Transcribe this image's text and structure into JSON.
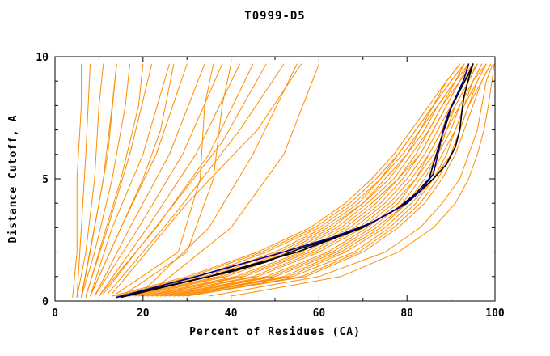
{
  "chart_data": {
    "type": "line",
    "title": "T0999-D5",
    "xlabel": "Percent of Residues (CA)",
    "ylabel": "Distance Cutoff, A",
    "xlim": [
      0,
      100
    ],
    "ylim": [
      0,
      10
    ],
    "x_ticks": [
      0,
      20,
      40,
      60,
      80,
      100
    ],
    "y_ticks": [
      0,
      5,
      10
    ],
    "x_minor_step": 10,
    "y_minor_step": 1,
    "grid": false,
    "legend": "none",
    "colors": {
      "model": "#ff8c00",
      "highlight_black": "#000000",
      "highlight_blue": "#000090"
    },
    "bundle": {
      "color": "#ff8c00",
      "ys": [
        0.2,
        1,
        2,
        3,
        4,
        5,
        6,
        7,
        8,
        9,
        9.7
      ],
      "curves_x": [
        [
          13,
          30,
          46,
          58,
          66,
          72,
          77,
          81,
          85,
          89,
          92
        ],
        [
          14,
          31,
          47,
          59,
          67,
          73,
          78,
          82,
          86,
          89,
          92
        ],
        [
          15,
          33,
          48,
          60,
          68,
          74,
          78,
          82,
          86,
          90,
          93
        ],
        [
          16,
          34,
          50,
          61,
          69,
          74,
          79,
          83,
          86,
          90,
          93
        ],
        [
          16,
          35,
          51,
          62,
          70,
          75,
          80,
          83,
          87,
          91,
          93
        ],
        [
          17,
          37,
          52,
          63,
          70,
          76,
          80,
          84,
          87,
          91,
          94
        ],
        [
          18,
          38,
          53,
          64,
          71,
          77,
          81,
          85,
          88,
          91,
          94
        ],
        [
          19,
          39,
          54,
          65,
          72,
          78,
          82,
          85,
          88,
          92,
          94
        ],
        [
          20,
          41,
          56,
          66,
          73,
          78,
          83,
          86,
          89,
          92,
          95
        ],
        [
          21,
          42,
          57,
          67,
          74,
          79,
          83,
          86,
          89,
          92,
          95
        ],
        [
          21,
          43,
          58,
          68,
          75,
          80,
          84,
          87,
          90,
          93,
          95
        ],
        [
          22,
          45,
          59,
          69,
          76,
          81,
          85,
          88,
          90,
          93,
          96
        ],
        [
          23,
          46,
          60,
          70,
          77,
          82,
          85,
          88,
          91,
          94,
          96
        ],
        [
          24,
          48,
          62,
          71,
          78,
          82,
          86,
          89,
          91,
          94,
          96
        ],
        [
          25,
          49,
          63,
          72,
          79,
          83,
          87,
          89,
          92,
          95,
          97
        ],
        [
          26,
          50,
          64,
          73,
          80,
          84,
          87,
          90,
          92,
          95,
          97
        ],
        [
          27,
          52,
          65,
          74,
          80,
          85,
          88,
          91,
          93,
          95,
          98
        ],
        [
          27,
          53,
          66,
          75,
          81,
          86,
          89,
          91,
          93,
          96,
          98
        ],
        [
          28,
          54,
          68,
          76,
          82,
          86,
          90,
          92,
          94,
          96,
          98
        ],
        [
          29,
          56,
          69,
          77,
          83,
          87,
          90,
          92,
          94,
          97,
          99
        ],
        [
          30,
          57,
          70,
          78,
          84,
          88,
          91,
          93,
          95,
          97,
          99
        ],
        [
          35,
          60,
          75,
          83,
          88,
          92,
          94,
          96,
          97,
          98,
          99.5
        ],
        [
          40,
          65,
          78,
          86,
          91,
          94,
          96,
          97.5,
          98.5,
          99.3,
          99.8
        ]
      ]
    },
    "outliers": [
      [
        [
          4,
          0.15
        ],
        [
          5,
          2
        ],
        [
          5,
          5
        ],
        [
          6,
          8
        ],
        [
          6,
          9.7
        ]
      ],
      [
        [
          5,
          0.15
        ],
        [
          6,
          3
        ],
        [
          7,
          6
        ],
        [
          8,
          9.7
        ]
      ],
      [
        [
          5,
          0.15
        ],
        [
          7,
          2
        ],
        [
          9,
          5
        ],
        [
          10,
          8
        ],
        [
          11,
          9.7
        ]
      ],
      [
        [
          6,
          0.15
        ],
        [
          8,
          2
        ],
        [
          11,
          5
        ],
        [
          13,
          8
        ],
        [
          14,
          9.7
        ]
      ],
      [
        [
          6,
          0.15
        ],
        [
          9,
          2
        ],
        [
          13,
          5
        ],
        [
          16,
          8
        ],
        [
          17,
          9.7
        ]
      ],
      [
        [
          7,
          0.15
        ],
        [
          10,
          2
        ],
        [
          15,
          5
        ],
        [
          19,
          8
        ],
        [
          20,
          9.7
        ]
      ],
      [
        [
          7,
          0.2
        ],
        [
          12,
          3
        ],
        [
          17,
          6
        ],
        [
          22,
          9.7
        ]
      ],
      [
        [
          8,
          0.2
        ],
        [
          13,
          3
        ],
        [
          20,
          6
        ],
        [
          26,
          9.7
        ]
      ],
      [
        [
          8,
          0.2
        ],
        [
          15,
          3
        ],
        [
          23,
          6
        ],
        [
          30,
          9.7
        ]
      ],
      [
        [
          9,
          0.2
        ],
        [
          17,
          3
        ],
        [
          26,
          6
        ],
        [
          34,
          9.7
        ]
      ],
      [
        [
          9,
          0.2
        ],
        [
          19,
          3
        ],
        [
          29,
          6
        ],
        [
          38,
          9.7
        ]
      ],
      [
        [
          10,
          0.2
        ],
        [
          21,
          3
        ],
        [
          32,
          6
        ],
        [
          42,
          9.7
        ]
      ],
      [
        [
          10,
          0.2
        ],
        [
          23,
          3
        ],
        [
          35,
          6
        ],
        [
          45,
          9.7
        ]
      ],
      [
        [
          11,
          0.3
        ],
        [
          25,
          3.5
        ],
        [
          38,
          6.5
        ],
        [
          48,
          9.7
        ]
      ],
      [
        [
          12,
          0.3
        ],
        [
          27,
          3.5
        ],
        [
          42,
          7
        ],
        [
          52,
          9.7
        ]
      ],
      [
        [
          13,
          0.3
        ],
        [
          30,
          4
        ],
        [
          46,
          7
        ],
        [
          56,
          9.7
        ]
      ],
      [
        [
          8,
          0.2
        ],
        [
          20,
          5
        ],
        [
          24,
          7
        ],
        [
          27,
          9.7
        ]
      ],
      [
        [
          6,
          0.2
        ],
        [
          10,
          4
        ],
        [
          12,
          6
        ],
        [
          14,
          9.7
        ]
      ],
      [
        [
          14,
          0.3
        ],
        [
          28,
          2
        ],
        [
          33,
          5
        ],
        [
          34,
          8
        ],
        [
          36,
          9.7
        ]
      ],
      [
        [
          16,
          0.3
        ],
        [
          30,
          2
        ],
        [
          36,
          5
        ],
        [
          38,
          8
        ],
        [
          40,
          9.7
        ]
      ],
      [
        [
          20,
          0.4
        ],
        [
          35,
          3
        ],
        [
          45,
          6
        ],
        [
          55,
          9.7
        ]
      ],
      [
        [
          22,
          0.4
        ],
        [
          40,
          3
        ],
        [
          52,
          6
        ],
        [
          60,
          9.7
        ]
      ]
    ],
    "highlights": [
      {
        "name": "highlight-black-1",
        "color": "#000000",
        "points": [
          [
            14,
            0.15
          ],
          [
            20,
            0.4
          ],
          [
            30,
            0.8
          ],
          [
            40,
            1.2
          ],
          [
            48,
            1.6
          ],
          [
            55,
            2.1
          ],
          [
            62,
            2.5
          ],
          [
            68,
            2.9
          ],
          [
            73,
            3.3
          ],
          [
            78,
            3.8
          ],
          [
            82,
            4.4
          ],
          [
            85,
            5.0
          ],
          [
            86,
            5.6
          ],
          [
            87,
            6.2
          ],
          [
            88,
            6.8
          ],
          [
            89,
            7.3
          ],
          [
            90,
            7.9
          ],
          [
            92,
            8.6
          ],
          [
            94,
            9.3
          ],
          [
            95,
            9.7
          ]
        ]
      },
      {
        "name": "highlight-black-2",
        "color": "#000000",
        "points": [
          [
            15,
            0.15
          ],
          [
            35,
            1.0
          ],
          [
            55,
            2.0
          ],
          [
            70,
            3.0
          ],
          [
            80,
            4.0
          ],
          [
            86,
            5.0
          ],
          [
            89,
            5.6
          ],
          [
            91,
            6.3
          ],
          [
            92,
            7.0
          ],
          [
            92.5,
            7.8
          ],
          [
            93,
            8.4
          ],
          [
            94,
            9.1
          ],
          [
            95,
            9.7
          ]
        ]
      },
      {
        "name": "highlight-blue-1",
        "color": "#000090",
        "points": [
          [
            14,
            0.15
          ],
          [
            32,
            1.0
          ],
          [
            50,
            1.9
          ],
          [
            63,
            2.6
          ],
          [
            72,
            3.2
          ],
          [
            79,
            3.9
          ],
          [
            83,
            4.5
          ],
          [
            86,
            5.2
          ],
          [
            87,
            6.0
          ],
          [
            88,
            6.8
          ],
          [
            89,
            7.5
          ],
          [
            91,
            8.3
          ],
          [
            93,
            9.1
          ],
          [
            94,
            9.7
          ]
        ]
      }
    ]
  }
}
